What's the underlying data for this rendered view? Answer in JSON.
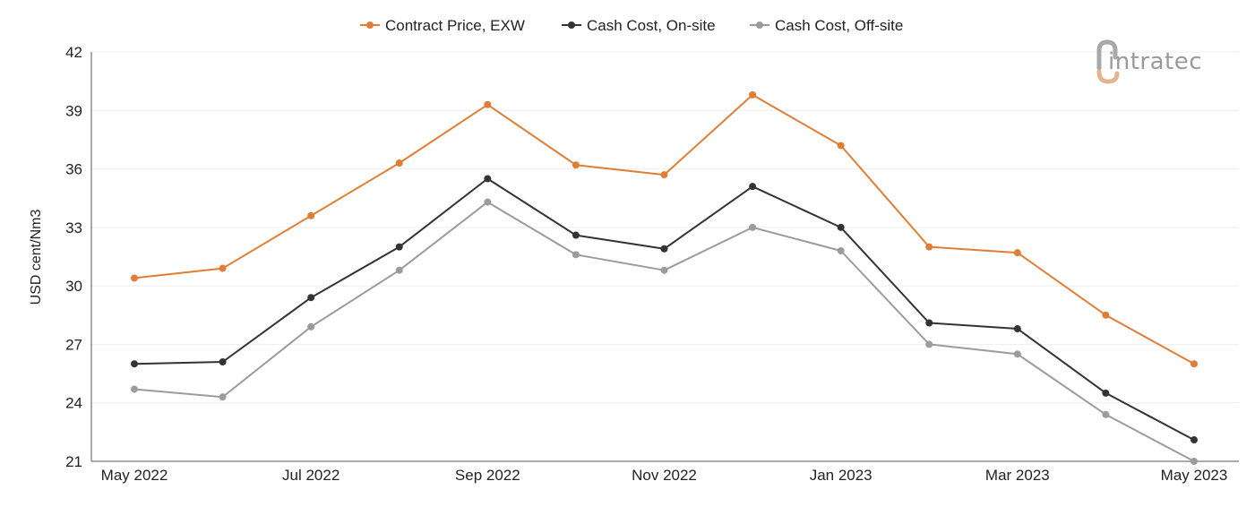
{
  "logo": {
    "text": "intratec",
    "colors": {
      "mark_orange": "#e3b48e",
      "mark_gray": "#a8a8a8",
      "text": "#9a9a9a"
    }
  },
  "chart_data": {
    "type": "line",
    "title": "",
    "xlabel": "",
    "ylabel": "USD cent/Nm3",
    "ylim": [
      21,
      42
    ],
    "yticks": [
      21,
      24,
      27,
      30,
      33,
      36,
      39,
      42
    ],
    "grid": true,
    "legend_position": "top-center",
    "categories": [
      "May 2022",
      "Jun 2022",
      "Jul 2022",
      "Aug 2022",
      "Sep 2022",
      "Oct 2022",
      "Nov 2022",
      "Dec 2022",
      "Jan 2023",
      "Feb 2023",
      "Mar 2023",
      "Apr 2023",
      "May 2023"
    ],
    "x_tick_labels": [
      "May 2022",
      "",
      "Jul 2022",
      "",
      "Sep 2022",
      "",
      "Nov 2022",
      "",
      "Jan 2023",
      "",
      "Mar 2023",
      "",
      "May 2023"
    ],
    "series": [
      {
        "name": "Contract Price, EXW",
        "color": "#e07e35",
        "values": [
          30.4,
          30.9,
          33.6,
          36.3,
          39.3,
          36.2,
          35.7,
          39.8,
          37.2,
          32.0,
          31.7,
          28.5,
          26.0
        ]
      },
      {
        "name": "Cash Cost, On-site",
        "color": "#333333",
        "values": [
          26.0,
          26.1,
          29.4,
          32.0,
          35.5,
          32.6,
          31.9,
          35.1,
          33.0,
          28.1,
          27.8,
          24.5,
          22.1
        ]
      },
      {
        "name": "Cash Cost, Off-site",
        "color": "#9b9b9b",
        "values": [
          24.7,
          24.3,
          27.9,
          30.8,
          34.3,
          31.6,
          30.8,
          33.0,
          31.8,
          27.0,
          26.5,
          23.4,
          21.0
        ]
      }
    ]
  }
}
